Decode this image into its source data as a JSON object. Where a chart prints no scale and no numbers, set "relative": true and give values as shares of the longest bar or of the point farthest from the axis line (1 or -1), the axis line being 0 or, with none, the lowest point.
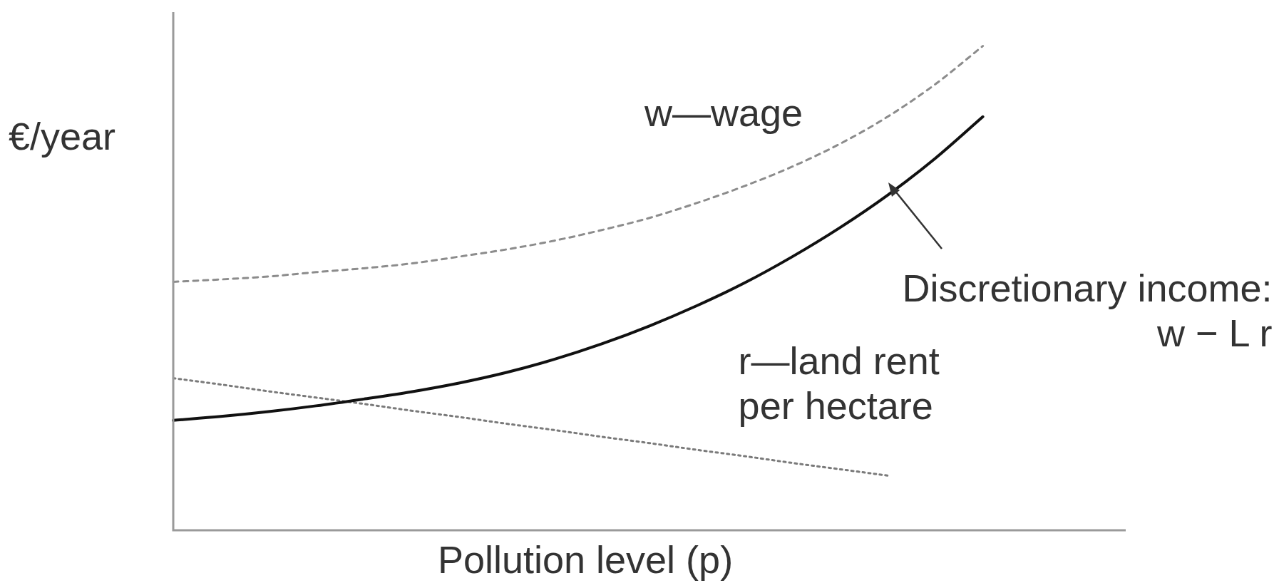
{
  "chart_data": {
    "type": "line",
    "relative": true,
    "xlabel": "Pollution level (p)",
    "ylabel": "€/year",
    "legend": false,
    "marker": "none",
    "categories": [
      null,
      null,
      null,
      null,
      null,
      null,
      null,
      null,
      null,
      null,
      null,
      null,
      null,
      null,
      null,
      null,
      null,
      null,
      null,
      null,
      null
    ],
    "series": [
      {
        "name": "w—wage",
        "color": "#8c8c8c",
        "line_style": "dashed",
        "values": [
          0.513,
          0.518,
          0.524,
          0.533,
          0.541,
          0.551,
          0.565,
          0.58,
          0.598,
          0.62,
          0.645,
          0.676,
          0.711,
          0.751,
          0.798,
          0.854,
          0.921,
          1,
          null,
          null,
          null
        ]
      },
      {
        "name": "Discretionary income: w − L r",
        "color": "#111111",
        "line_style": "solid",
        "values": [
          0.227,
          0.235,
          0.245,
          0.257,
          0.271,
          0.286,
          0.304,
          0.326,
          0.353,
          0.385,
          0.422,
          0.464,
          0.511,
          0.565,
          0.625,
          0.692,
          0.768,
          0.854,
          null,
          null,
          null
        ]
      },
      {
        "name": "r—land rent per hectare",
        "color": "#7a7a7a",
        "line_style": "dotted",
        "values": [
          0.314,
          0.301,
          0.287,
          0.274,
          0.261,
          0.247,
          0.234,
          0.22,
          0.207,
          0.193,
          0.18,
          0.166,
          0.153,
          0.139,
          0.126,
          0.113,
          null,
          null,
          null,
          null,
          null
        ]
      }
    ]
  }
}
